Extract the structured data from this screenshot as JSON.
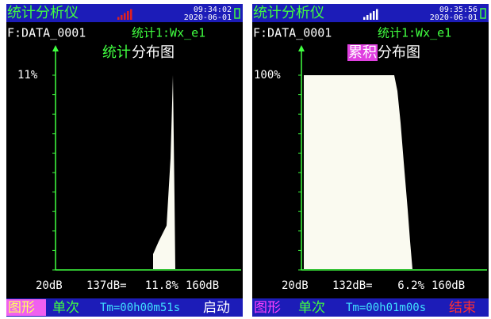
{
  "screens": [
    {
      "header": {
        "title": "统计分析仪",
        "time": "09:34:02",
        "date": "2020-06-01"
      },
      "file": "F:DATA_0001",
      "channel": "统计1:Wx_e1",
      "chart_title": [
        "统计",
        "分布图"
      ],
      "y_label": "11%",
      "x_start": "20dB",
      "cursor": "137dB=",
      "cursor_value": "11.8%",
      "x_end": "160dB",
      "footer": [
        "图形",
        "单次",
        "Tm=00h00m51s",
        "启动"
      ]
    },
    {
      "header": {
        "title": "统计分析仪",
        "time": "09:35:56",
        "date": "2020-06-01"
      },
      "file": "F:DATA_0001",
      "channel": "统计1:Wx_e1",
      "chart_title": [
        "累积",
        "分布图"
      ],
      "y_label": "100%",
      "x_start": "20dB",
      "cursor": "132dB=",
      "cursor_value": "6.2%",
      "x_end": "160dB",
      "footer": [
        "图形",
        "单次",
        "Tm=00h01m00s",
        "结束"
      ]
    }
  ]
}
